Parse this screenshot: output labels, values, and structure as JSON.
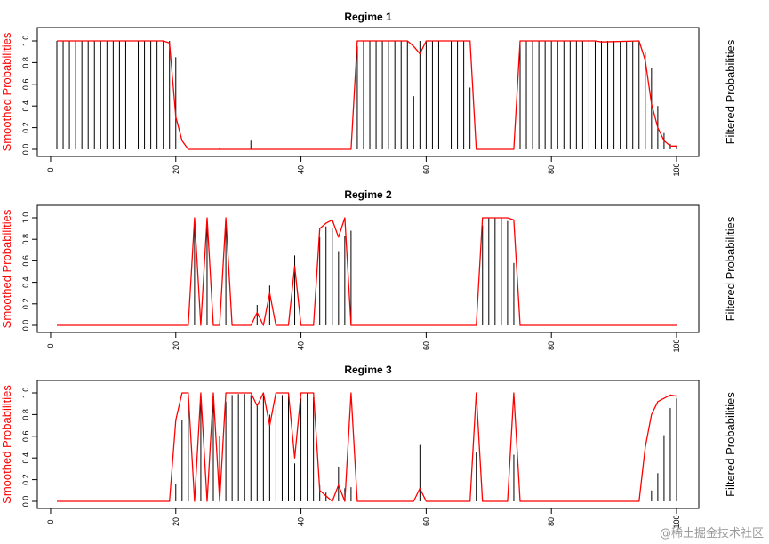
{
  "watermark": "@稀土掘金技术社区",
  "colors": {
    "smoothed": "#ff0000",
    "filtered": "#000000",
    "frame": "#000000"
  },
  "chart_data": [
    {
      "type": "line",
      "title": "Regime 1",
      "ylabel": "Smoothed Probabilities",
      "ylabel_right": "Filtered Probabilities",
      "xlim": [
        1,
        100
      ],
      "ylim": [
        0,
        1
      ],
      "xticks": [
        0,
        20,
        40,
        60,
        80,
        100
      ],
      "yticks": [
        0.0,
        0.2,
        0.4,
        0.6,
        0.8,
        1.0
      ],
      "ytick_labels": [
        "0.0",
        "0.2",
        "0.4",
        "0.6",
        "0.8",
        "1.0"
      ],
      "series": [
        {
          "name": "Smoothed Probabilities",
          "kind": "line",
          "x": [
            1,
            18,
            19,
            20,
            21,
            22,
            48,
            49,
            57,
            58,
            59,
            60,
            67,
            68,
            74,
            75,
            87,
            88,
            94,
            95,
            96,
            97,
            98,
            99,
            100
          ],
          "y": [
            1,
            1,
            0.98,
            0.3,
            0.08,
            0,
            0,
            1,
            1,
            0.95,
            0.88,
            1,
            1,
            0,
            0,
            1,
            1,
            0.99,
            1,
            0.82,
            0.42,
            0.2,
            0.08,
            0.03,
            0.03
          ]
        },
        {
          "name": "Filtered Probabilities",
          "kind": "spikes",
          "x": [
            1,
            2,
            3,
            4,
            5,
            6,
            7,
            8,
            9,
            10,
            11,
            12,
            13,
            14,
            15,
            16,
            17,
            18,
            19,
            20,
            27,
            32,
            49,
            50,
            51,
            52,
            53,
            54,
            55,
            56,
            57,
            58,
            59,
            60,
            61,
            62,
            63,
            64,
            65,
            66,
            67,
            68,
            75,
            76,
            77,
            78,
            79,
            80,
            81,
            82,
            83,
            84,
            85,
            86,
            87,
            88,
            89,
            90,
            91,
            92,
            93,
            94,
            95,
            96,
            97,
            98,
            99,
            100
          ],
          "y": [
            1,
            1,
            1,
            1,
            1,
            1,
            1,
            1,
            1,
            1,
            1,
            1,
            1,
            1,
            1,
            1,
            1,
            1,
            1,
            0.85,
            0.01,
            0.08,
            0.95,
            1,
            1,
            1,
            1,
            1,
            1,
            1,
            1,
            0.49,
            1,
            1,
            1,
            1,
            1,
            1,
            1,
            1,
            0.57,
            0.04,
            1,
            1,
            1,
            1,
            1,
            1,
            1,
            1,
            1,
            1,
            1,
            1,
            1,
            1,
            1,
            1,
            1,
            1,
            1,
            1,
            0.9,
            0.75,
            0.4,
            0.15,
            0.05,
            0.03
          ]
        }
      ]
    },
    {
      "type": "line",
      "title": "Regime 2",
      "ylabel": "Smoothed Probabilities",
      "ylabel_right": "Filtered Probabilities",
      "xlim": [
        1,
        100
      ],
      "ylim": [
        0,
        1
      ],
      "xticks": [
        0,
        20,
        40,
        60,
        80,
        100
      ],
      "yticks": [
        0.0,
        0.2,
        0.4,
        0.6,
        0.8,
        1.0
      ],
      "ytick_labels": [
        "0.0",
        "0.2",
        "0.4",
        "0.6",
        "0.8",
        "1.0"
      ],
      "series": [
        {
          "name": "Smoothed Probabilities",
          "kind": "line",
          "x": [
            1,
            22,
            23,
            24,
            25,
            26,
            27,
            28,
            29,
            30,
            32,
            33,
            34,
            35,
            36,
            38,
            39,
            40,
            42,
            43,
            44,
            45,
            46,
            47,
            48,
            49,
            68,
            69,
            70,
            73,
            74,
            75,
            100
          ],
          "y": [
            0,
            0,
            1,
            0,
            1,
            0,
            0,
            1,
            0,
            0,
            0,
            0.12,
            0,
            0.3,
            0,
            0,
            0.55,
            0,
            0,
            0.9,
            0.95,
            0.98,
            0.82,
            1,
            0,
            0,
            0,
            1,
            1,
            1,
            0.98,
            0,
            0
          ]
        },
        {
          "name": "Filtered Probabilities",
          "kind": "spikes",
          "x": [
            23,
            25,
            28,
            33,
            35,
            39,
            43,
            44,
            45,
            46,
            47,
            48,
            69,
            70,
            71,
            72,
            73,
            74
          ],
          "y": [
            0.93,
            0.93,
            0.93,
            0.19,
            0.37,
            0.65,
            0.82,
            0.92,
            0.9,
            0.69,
            0.83,
            0.88,
            0.93,
            1,
            1,
            1,
            0.97,
            0.58
          ]
        }
      ]
    },
    {
      "type": "line",
      "title": "Regime 3",
      "ylabel": "Smoothed Probabilities",
      "ylabel_right": "Filtered Probabilities",
      "xlim": [
        1,
        100
      ],
      "ylim": [
        0,
        1
      ],
      "xticks": [
        0,
        20,
        40,
        60,
        80,
        100
      ],
      "yticks": [
        0.0,
        0.2,
        0.4,
        0.6,
        0.8,
        1.0
      ],
      "ytick_labels": [
        "0.0",
        "0.2",
        "0.4",
        "0.6",
        "0.8",
        "1.0"
      ],
      "series": [
        {
          "name": "Smoothed Probabilities",
          "kind": "line",
          "x": [
            1,
            19,
            20,
            21,
            22,
            23,
            24,
            25,
            26,
            27,
            28,
            29,
            30,
            31,
            32,
            33,
            34,
            35,
            36,
            37,
            38,
            39,
            40,
            41,
            42,
            43,
            44,
            45,
            46,
            47,
            48,
            49,
            58,
            59,
            60,
            67,
            68,
            69,
            73,
            74,
            75,
            94,
            95,
            96,
            97,
            98,
            99,
            100
          ],
          "y": [
            0,
            0,
            0.75,
            1,
            1,
            0,
            1,
            0,
            1,
            0,
            1,
            1,
            1,
            1,
            1,
            0.88,
            1,
            0.7,
            1,
            1,
            1,
            0.4,
            1,
            1,
            1,
            0.1,
            0.05,
            0,
            0.15,
            0,
            1,
            0,
            0,
            0.12,
            0,
            0,
            1,
            0,
            0,
            1,
            0,
            0,
            0.5,
            0.8,
            0.92,
            0.95,
            0.98,
            0.97
          ]
        },
        {
          "name": "Filtered Probabilities",
          "kind": "spikes",
          "x": [
            20,
            21,
            22,
            24,
            26,
            27,
            28,
            29,
            30,
            31,
            32,
            33,
            34,
            35,
            36,
            37,
            38,
            39,
            40,
            41,
            42,
            43,
            44,
            46,
            47,
            48,
            59,
            68,
            74,
            96,
            97,
            98,
            99,
            100
          ],
          "y": [
            0.16,
            0.75,
            0.95,
            0.92,
            0.92,
            0.6,
            0.92,
            0.98,
            0.99,
            0.99,
            0.98,
            0.9,
            0.97,
            0.8,
            0.97,
            0.98,
            0.98,
            0.35,
            0.95,
            1,
            0.96,
            0.15,
            0.08,
            0.32,
            0.12,
            0.13,
            0.52,
            0.45,
            0.43,
            0.1,
            0.26,
            0.61,
            0.86,
            0.95
          ]
        }
      ]
    }
  ]
}
